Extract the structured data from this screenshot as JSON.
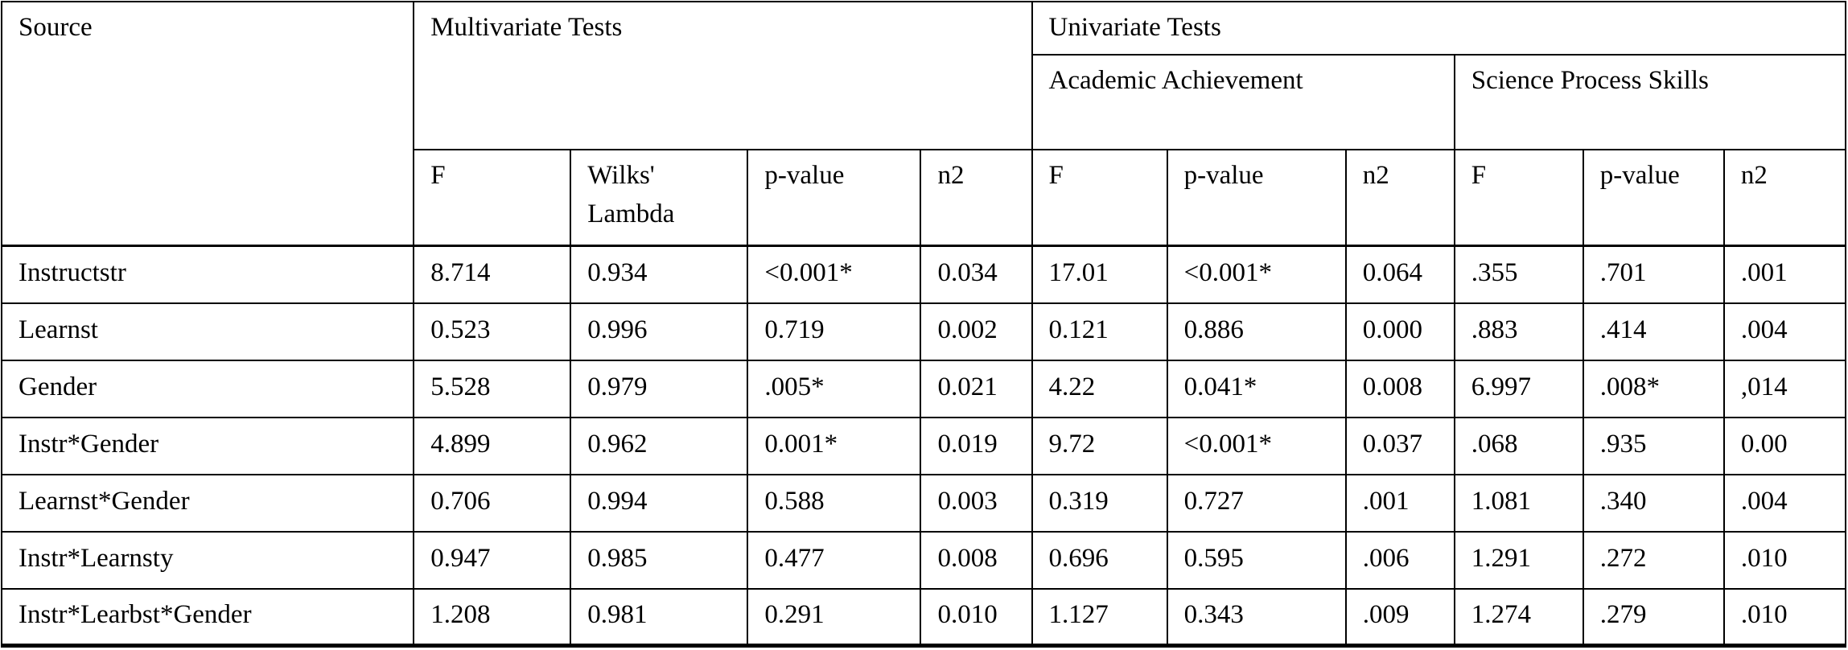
{
  "colors": {
    "background": "#ffffff",
    "border": "#000000",
    "text": "#000000"
  },
  "table": {
    "header": {
      "source": "Source",
      "multivariate": "Multivariate Tests",
      "univariate": "Univariate Tests",
      "academic": "Academic Achievement",
      "science": "Science Process Skills",
      "sub": [
        "F",
        "Wilks' Lambda",
        "p-value",
        "n2",
        "F",
        "p-value",
        "n2",
        "F",
        "p-value",
        "n2"
      ]
    },
    "rows": [
      {
        "source": "Instructstr",
        "cells": [
          "8.714",
          "0.934",
          "<0.001*",
          "0.034",
          "17.01",
          "<0.001*",
          "0.064",
          ".355",
          ".701",
          ".001"
        ]
      },
      {
        "source": "Learnst",
        "cells": [
          "0.523",
          "0.996",
          "0.719",
          "0.002",
          "0.121",
          "0.886",
          "0.000",
          ".883",
          ".414",
          ".004"
        ]
      },
      {
        "source": "Gender",
        "cells": [
          "5.528",
          "0.979",
          ".005*",
          "0.021",
          "4.22",
          "0.041*",
          "0.008",
          "6.997",
          ".008*",
          ",014"
        ]
      },
      {
        "source": "Instr*Gender",
        "cells": [
          "4.899",
          "0.962",
          "0.001*",
          "0.019",
          "9.72",
          "<0.001*",
          "0.037",
          ".068",
          ".935",
          "0.00"
        ]
      },
      {
        "source": "Learnst*Gender",
        "cells": [
          "0.706",
          "0.994",
          "0.588",
          "0.003",
          "0.319",
          "0.727",
          ".001",
          "1.081",
          ".340",
          ".004"
        ]
      },
      {
        "source": "Instr*Learnsty",
        "cells": [
          "0.947",
          "0.985",
          "0.477",
          "0.008",
          "0.696",
          "0.595",
          ".006",
          "1.291",
          ".272",
          ".010"
        ]
      },
      {
        "source": "Instr*Learbst*Gender",
        "cells": [
          "1.208",
          "0.981",
          "0.291",
          "0.010",
          "1.127",
          "0.343",
          ".009",
          "1.274",
          ".279",
          ".010"
        ]
      }
    ]
  },
  "chart_data": {
    "type": "table",
    "title": "Multivariate and Univariate Tests",
    "column_groups": [
      "Multivariate Tests",
      "Univariate Tests: Academic Achievement",
      "Univariate Tests: Science Process Skills"
    ],
    "columns": [
      "Source",
      "F",
      "Wilks' Lambda",
      "p-value",
      "n2",
      "F",
      "p-value",
      "n2",
      "F",
      "p-value",
      "n2"
    ],
    "rows": [
      [
        "Instructstr",
        "8.714",
        "0.934",
        "<0.001*",
        "0.034",
        "17.01",
        "<0.001*",
        "0.064",
        ".355",
        ".701",
        ".001"
      ],
      [
        "Learnst",
        "0.523",
        "0.996",
        "0.719",
        "0.002",
        "0.121",
        "0.886",
        "0.000",
        ".883",
        ".414",
        ".004"
      ],
      [
        "Gender",
        "5.528",
        "0.979",
        ".005*",
        "0.021",
        "4.22",
        "0.041*",
        "0.008",
        "6.997",
        ".008*",
        ",014"
      ],
      [
        "Instr*Gender",
        "4.899",
        "0.962",
        "0.001*",
        "0.019",
        "9.72",
        "<0.001*",
        "0.037",
        ".068",
        ".935",
        "0.00"
      ],
      [
        "Learnst*Gender",
        "0.706",
        "0.994",
        "0.588",
        "0.003",
        "0.319",
        "0.727",
        ".001",
        "1.081",
        ".340",
        ".004"
      ],
      [
        "Instr*Learnsty",
        "0.947",
        "0.985",
        "0.477",
        "0.008",
        "0.696",
        "0.595",
        ".006",
        "1.291",
        ".272",
        ".010"
      ],
      [
        "Instr*Learbst*Gender",
        "1.208",
        "0.981",
        "0.291",
        "0.010",
        "1.127",
        "0.343",
        ".009",
        "1.274",
        ".279",
        ".010"
      ]
    ]
  }
}
